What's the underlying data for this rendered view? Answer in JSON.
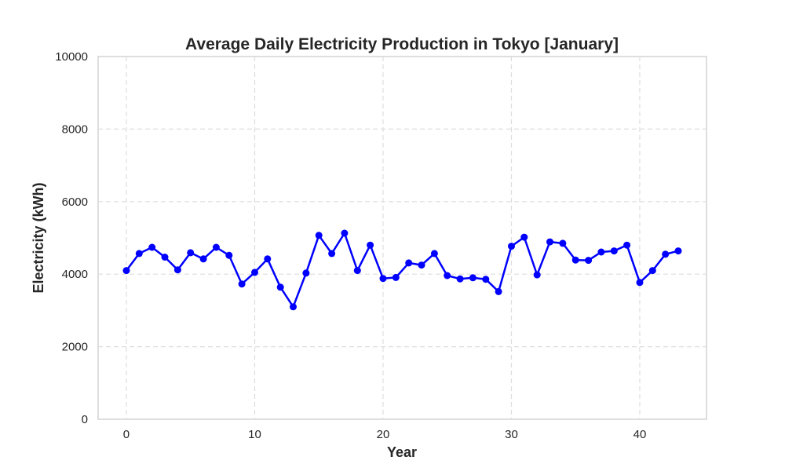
{
  "chart_data": {
    "type": "line",
    "title": "Average Daily Electricity Production in Tokyo [January]",
    "xlabel": "Year",
    "ylabel": "Electricity (kWh)",
    "xlim": [
      -2.2,
      45.2
    ],
    "ylim": [
      0,
      10000
    ],
    "xticks": [
      0,
      10,
      20,
      30,
      40
    ],
    "yticks": [
      0,
      2000,
      4000,
      6000,
      8000,
      10000
    ],
    "grid": true,
    "legend": "none",
    "series": [
      {
        "color": "#0000ff",
        "marker": "circle",
        "x": [
          0,
          1,
          2,
          3,
          4,
          5,
          6,
          7,
          8,
          9,
          10,
          11,
          12,
          13,
          14,
          15,
          16,
          17,
          18,
          19,
          20,
          21,
          22,
          23,
          24,
          25,
          26,
          27,
          28,
          29,
          30,
          31,
          32,
          33,
          34,
          35,
          36,
          37,
          38,
          39,
          40,
          41,
          42,
          43
        ],
        "values": [
          4100,
          4570,
          4740,
          4470,
          4120,
          4590,
          4420,
          4740,
          4520,
          3730,
          4050,
          4420,
          3640,
          3100,
          4030,
          5070,
          4570,
          5130,
          4100,
          4800,
          3880,
          3910,
          4310,
          4250,
          4570,
          3960,
          3870,
          3900,
          3860,
          3520,
          4770,
          5020,
          3980,
          4890,
          4850,
          4390,
          4380,
          4610,
          4640,
          4800,
          3770,
          4100,
          4550,
          4640
        ]
      }
    ]
  }
}
